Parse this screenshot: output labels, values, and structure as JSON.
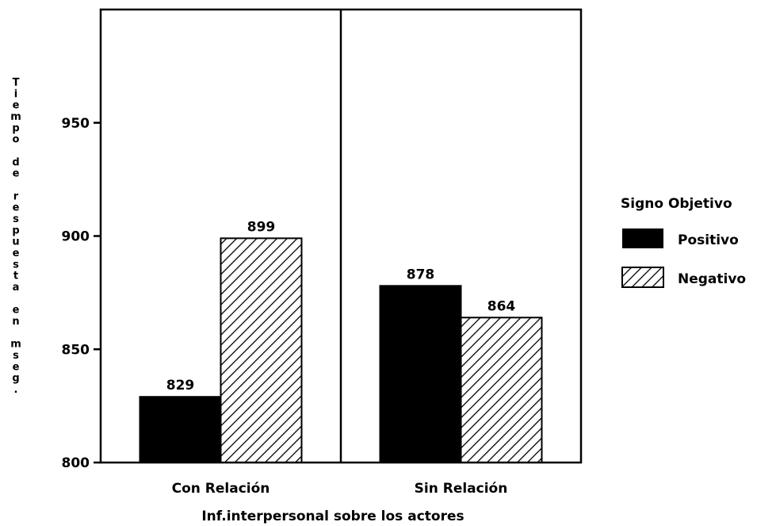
{
  "chart_data": {
    "type": "bar",
    "categories": [
      "Con Relación",
      "Sin Relación"
    ],
    "series": [
      {
        "name": "Positivo",
        "values": [
          829,
          878
        ],
        "pattern": "solid",
        "color": "#000000"
      },
      {
        "name": "Negativo",
        "values": [
          899,
          864
        ],
        "pattern": "hatch",
        "color": "#000000"
      }
    ],
    "data_labels": [
      [
        "829",
        "899"
      ],
      [
        "878",
        "864"
      ]
    ],
    "xlabel": "Inf.interpersonal sobre los actores",
    "ylabel": "Tiempo de respuesta en mseg.",
    "ylim": [
      800,
      1000
    ],
    "yticks": [
      800,
      850,
      900,
      950
    ],
    "legend": {
      "title": "Signo Objetivo",
      "position": "right"
    },
    "panel_divider": true,
    "grid": false
  }
}
